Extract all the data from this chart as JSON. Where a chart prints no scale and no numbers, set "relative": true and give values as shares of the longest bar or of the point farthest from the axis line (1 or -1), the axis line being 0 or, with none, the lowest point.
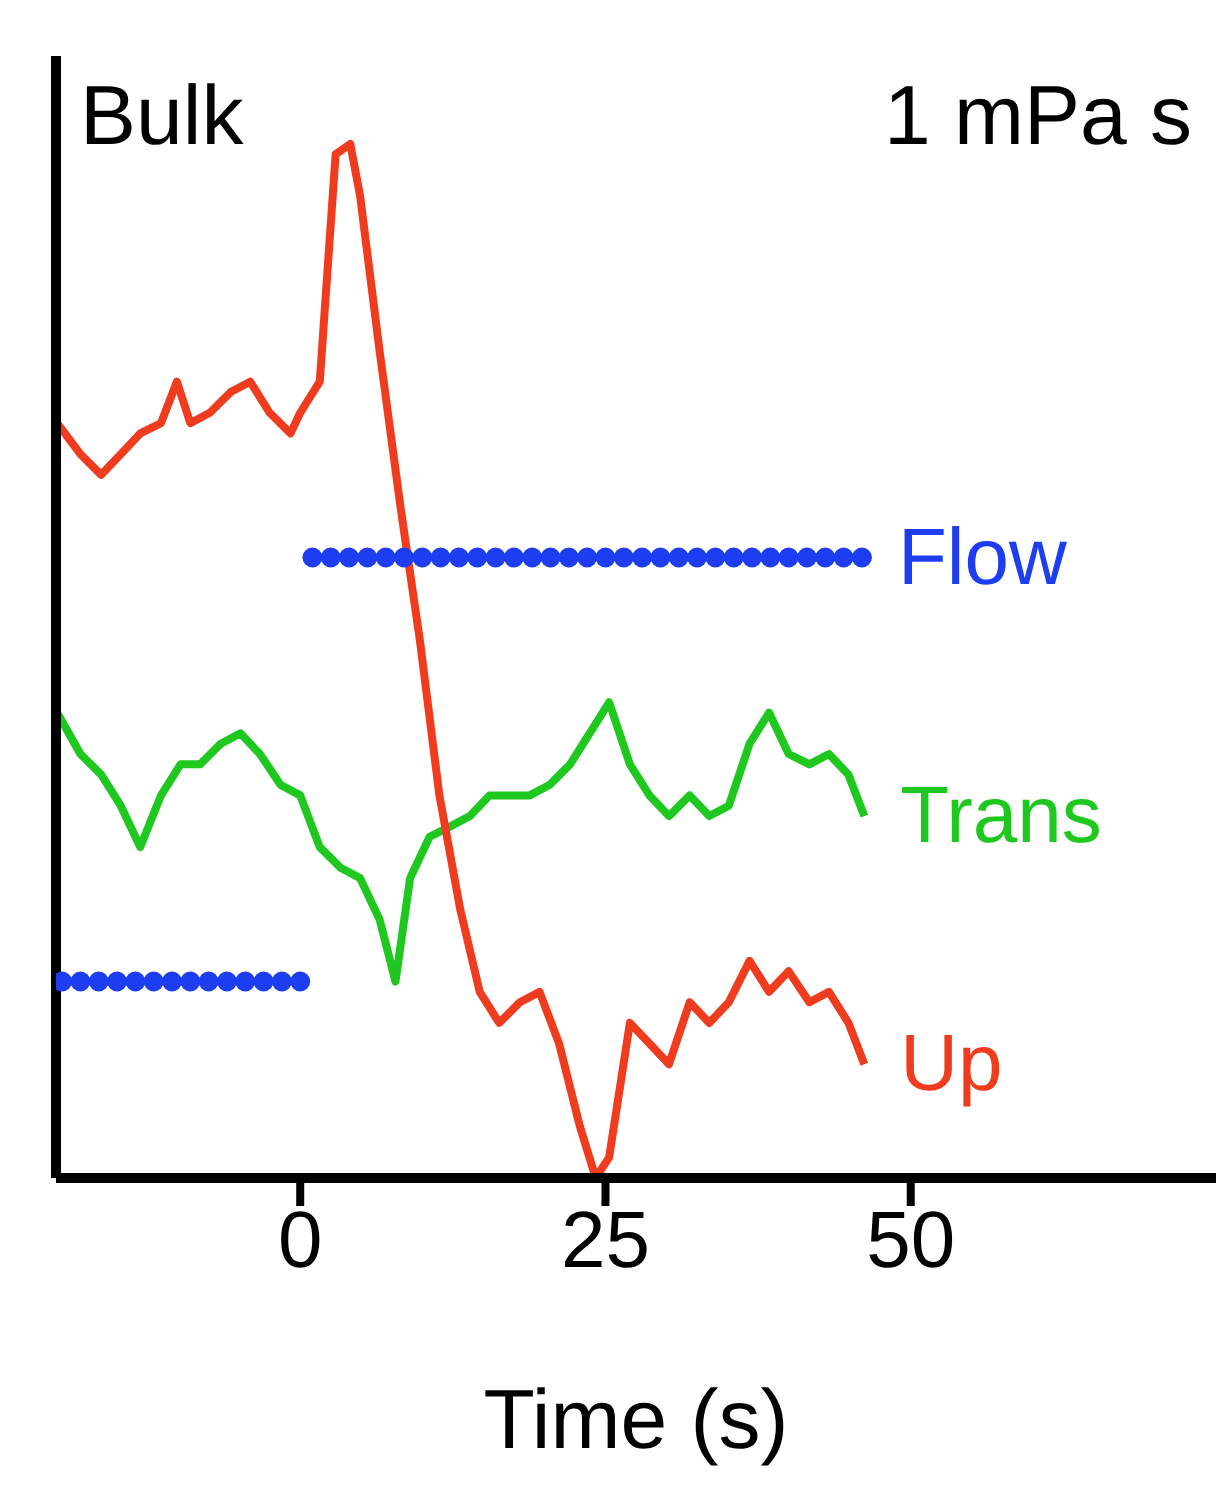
{
  "chart_data": {
    "type": "line",
    "title": "Bulk",
    "annotations": [
      "1 mPa s"
    ],
    "xlabel": "Time (s)",
    "relative": true,
    "xlim": [
      -20,
      75
    ],
    "xticks": [
      0,
      25,
      50
    ],
    "series": [
      {
        "name": "Flow",
        "type": "scatter",
        "color": "#1e3cf0",
        "marker": "circle",
        "x": [
          -19.5,
          -18,
          -16.5,
          -15,
          -13.5,
          -12,
          -10.5,
          -9,
          -7.5,
          -6,
          -4.5,
          -3,
          -1.5,
          0,
          1,
          2.5,
          4,
          5.5,
          7,
          8.5,
          10,
          11.5,
          13,
          14.5,
          16,
          17.5,
          19,
          20.5,
          22,
          23.5,
          25,
          26.5,
          28,
          29.5,
          31,
          32.5,
          34,
          35.5,
          37,
          38.5,
          40,
          41.5,
          43,
          44.5,
          46
        ],
        "values": [
          0.19,
          0.19,
          0.19,
          0.19,
          0.19,
          0.19,
          0.19,
          0.19,
          0.19,
          0.19,
          0.19,
          0.19,
          0.19,
          0.19,
          0.6,
          0.6,
          0.6,
          0.6,
          0.6,
          0.6,
          0.6,
          0.6,
          0.6,
          0.6,
          0.6,
          0.6,
          0.6,
          0.6,
          0.6,
          0.6,
          0.6,
          0.6,
          0.6,
          0.6,
          0.6,
          0.6,
          0.6,
          0.6,
          0.6,
          0.6,
          0.6,
          0.6,
          0.6,
          0.6,
          0.6
        ]
      },
      {
        "name": "Trans",
        "color": "#1ec81e",
        "x": [
          -19.9,
          -18,
          -16.3,
          -14.7,
          -13.1,
          -11.4,
          -9.8,
          -8.2,
          -6.5,
          -4.9,
          -3.3,
          -1.6,
          0,
          1.6,
          3.3,
          4.9,
          6.5,
          7.8,
          9,
          10.6,
          12.3,
          13.9,
          15.5,
          17.2,
          18.8,
          20.4,
          22.1,
          23.7,
          25.3,
          27,
          28.6,
          30.2,
          31.9,
          33.5,
          35.1,
          36.8,
          38.4,
          40,
          41.7,
          43.3,
          44.9,
          46.2
        ],
        "values": [
          0.45,
          0.41,
          0.39,
          0.36,
          0.32,
          0.37,
          0.4,
          0.4,
          0.42,
          0.43,
          0.41,
          0.38,
          0.37,
          0.32,
          0.3,
          0.29,
          0.25,
          0.19,
          0.29,
          0.33,
          0.34,
          0.35,
          0.37,
          0.37,
          0.37,
          0.38,
          0.4,
          0.43,
          0.46,
          0.4,
          0.37,
          0.35,
          0.37,
          0.35,
          0.36,
          0.42,
          0.45,
          0.41,
          0.4,
          0.41,
          0.39,
          0.35
        ]
      },
      {
        "name": "Up",
        "color": "#f03c1e",
        "x": [
          -19.9,
          -18,
          -16.3,
          -14.7,
          -13.1,
          -11.4,
          -10.1,
          -9,
          -7.4,
          -5.7,
          -4.1,
          -2.5,
          -0.8,
          0,
          1.6,
          2.9,
          4.1,
          4.9,
          6.5,
          8.2,
          9.8,
          11.4,
          13.1,
          14.7,
          16.3,
          18,
          19.6,
          21.2,
          22.9,
          24.2,
          25.3,
          27,
          28.6,
          30.2,
          31.9,
          33.5,
          35.1,
          36.8,
          38.4,
          40,
          41.7,
          43.3,
          44.9,
          46.2
        ],
        "values": [
          0.73,
          0.7,
          0.68,
          0.7,
          0.72,
          0.73,
          0.77,
          0.73,
          0.74,
          0.76,
          0.77,
          0.74,
          0.72,
          0.74,
          0.77,
          0.99,
          1,
          0.95,
          0.8,
          0.65,
          0.52,
          0.37,
          0.26,
          0.18,
          0.15,
          0.17,
          0.18,
          0.13,
          0.05,
          0,
          0.02,
          0.15,
          0.13,
          0.11,
          0.17,
          0.15,
          0.17,
          0.21,
          0.18,
          0.2,
          0.17,
          0.18,
          0.15,
          0.11
        ]
      }
    ]
  }
}
